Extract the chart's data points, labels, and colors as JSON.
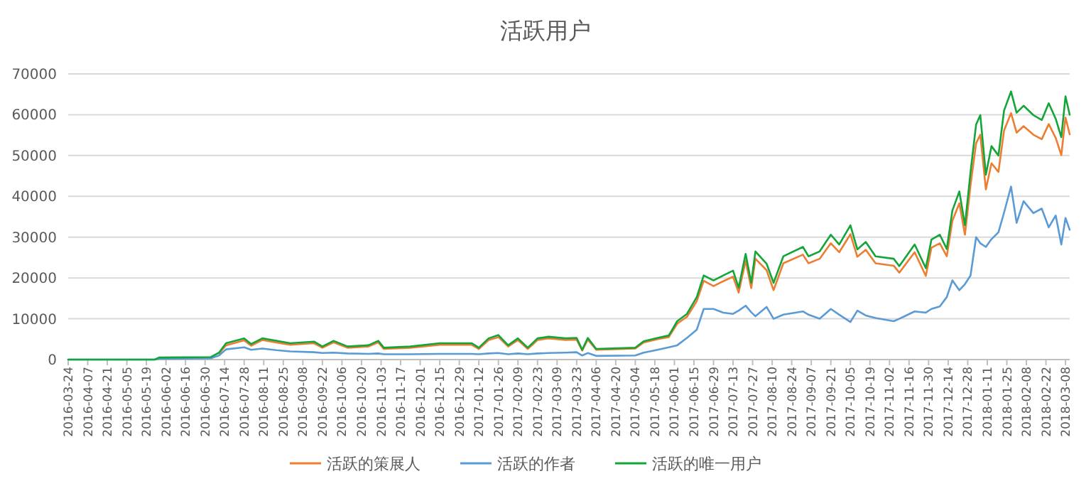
{
  "chart_data": {
    "type": "line",
    "title": "活跃用户",
    "x": [
      "2016-03-24",
      "2016-05-25",
      "2016-05-28",
      "2016-07-04",
      "2016-07-10",
      "2016-07-15",
      "2016-07-28",
      "2016-08-02",
      "2016-08-10",
      "2016-08-20",
      "2016-08-30",
      "2016-09-16",
      "2016-09-22",
      "2016-09-30",
      "2016-10-10",
      "2016-10-25",
      "2016-11-01",
      "2016-11-05",
      "2016-11-24",
      "2016-12-15",
      "2017-01-07",
      "2017-01-12",
      "2017-01-19",
      "2017-01-26",
      "2017-02-02",
      "2017-02-09",
      "2017-02-16",
      "2017-02-23",
      "2017-03-03",
      "2017-03-15",
      "2017-03-23",
      "2017-03-27",
      "2017-03-31",
      "2017-04-06",
      "2017-05-04",
      "2017-05-10",
      "2017-05-20",
      "2017-05-28",
      "2017-06-03",
      "2017-06-10",
      "2017-06-17",
      "2017-06-22",
      "2017-06-29",
      "2017-07-06",
      "2017-07-13",
      "2017-07-17",
      "2017-07-22",
      "2017-07-26",
      "2017-07-29",
      "2017-08-06",
      "2017-08-11",
      "2017-08-18",
      "2017-09-01",
      "2017-09-05",
      "2017-09-13",
      "2017-09-21",
      "2017-09-27",
      "2017-10-05",
      "2017-10-10",
      "2017-10-16",
      "2017-10-23",
      "2017-11-05",
      "2017-11-09",
      "2017-11-20",
      "2017-11-28",
      "2017-12-02",
      "2017-12-08",
      "2017-12-13",
      "2017-12-17",
      "2017-12-22",
      "2017-12-26",
      "2017-12-30",
      "2018-01-03",
      "2018-01-06",
      "2018-01-10",
      "2018-01-14",
      "2018-01-19",
      "2018-01-23",
      "2018-01-28",
      "2018-02-01",
      "2018-02-06",
      "2018-02-13",
      "2018-02-19",
      "2018-02-24",
      "2018-03-01",
      "2018-03-05",
      "2018-03-08",
      "2018-03-11"
    ],
    "series": [
      {
        "name": "活跃的策展人",
        "color": "#ed7d31",
        "values": [
          null,
          null,
          null,
          null,
          1500,
          3500,
          4700,
          3400,
          4800,
          4200,
          3600,
          4000,
          2900,
          4200,
          2900,
          3200,
          4200,
          2600,
          2900,
          3600,
          3600,
          2600,
          4800,
          5500,
          3200,
          4800,
          2600,
          4800,
          5200,
          4800,
          4900,
          2200,
          4900,
          2400,
          2700,
          4200,
          5000,
          5500,
          8800,
          10500,
          14300,
          19300,
          18000,
          19200,
          20300,
          16400,
          24200,
          17500,
          24700,
          21900,
          17000,
          23600,
          25700,
          23600,
          24700,
          28500,
          26300,
          30700,
          25200,
          26900,
          23600,
          23000,
          21300,
          26300,
          20500,
          27400,
          28500,
          25300,
          34000,
          38300,
          30600,
          42700,
          53000,
          55100,
          41700,
          48100,
          46000,
          56100,
          60400,
          55600,
          57200,
          55100,
          54000,
          57700,
          54300,
          50100,
          59300,
          55200
        ]
      },
      {
        "name": "活跃的作者",
        "color": "#5b9bd5",
        "values": [
          0,
          0,
          200,
          300,
          1000,
          2500,
          3000,
          2400,
          2700,
          2300,
          2000,
          1800,
          1600,
          1700,
          1500,
          1400,
          1500,
          1300,
          1300,
          1400,
          1400,
          1300,
          1500,
          1600,
          1300,
          1500,
          1300,
          1500,
          1600,
          1700,
          1800,
          1000,
          1600,
          900,
          1000,
          1700,
          2400,
          3000,
          3500,
          5300,
          7300,
          12400,
          12400,
          11500,
          11200,
          12000,
          13200,
          11600,
          10600,
          12900,
          10000,
          11000,
          11800,
          11000,
          10000,
          12400,
          11000,
          9200,
          12000,
          10800,
          10200,
          9400,
          10000,
          11800,
          11500,
          12400,
          13000,
          15300,
          19400,
          17000,
          18500,
          20600,
          30000,
          28500,
          27600,
          29500,
          31200,
          36000,
          42400,
          33500,
          38800,
          35900,
          37000,
          32400,
          35300,
          28200,
          34700,
          31800
        ]
      },
      {
        "name": "活跃的唯一用户",
        "color": "#13a538",
        "values": [
          0,
          0,
          500,
          600,
          1700,
          4000,
          5200,
          3800,
          5200,
          4600,
          4000,
          4400,
          3200,
          4600,
          3200,
          3500,
          4600,
          2900,
          3200,
          4000,
          4000,
          2900,
          5200,
          6000,
          3500,
          5200,
          2900,
          5200,
          5600,
          5200,
          5300,
          2400,
          5300,
          2600,
          2900,
          4500,
          5300,
          5900,
          9400,
          11200,
          15300,
          20600,
          19400,
          20600,
          21800,
          17600,
          25900,
          18800,
          26500,
          23500,
          18800,
          25300,
          27600,
          25300,
          26500,
          30600,
          28200,
          32900,
          27000,
          28800,
          25300,
          24700,
          22900,
          28200,
          22400,
          29400,
          30600,
          27100,
          36500,
          41200,
          32900,
          45900,
          57600,
          59900,
          45300,
          52300,
          50000,
          61000,
          65700,
          60500,
          62200,
          59900,
          58700,
          62800,
          59000,
          54500,
          64500,
          60000
        ]
      }
    ],
    "xlim": [
      "2016-03-24",
      "2018-03-11"
    ],
    "xticks": [
      "2016-03-24",
      "2016-04-07",
      "2016-04-21",
      "2016-05-05",
      "2016-05-19",
      "2016-06-02",
      "2016-06-16",
      "2016-06-30",
      "2016-07-14",
      "2016-07-28",
      "2016-08-11",
      "2016-08-25",
      "2016-09-08",
      "2016-09-22",
      "2016-10-06",
      "2016-10-20",
      "2016-11-03",
      "2016-11-17",
      "2016-12-01",
      "2016-12-15",
      "2016-12-29",
      "2017-01-12",
      "2017-01-26",
      "2017-02-09",
      "2017-02-23",
      "2017-03-09",
      "2017-03-23",
      "2017-04-06",
      "2017-04-20",
      "2017-05-04",
      "2017-05-18",
      "2017-06-01",
      "2017-06-15",
      "2017-06-29",
      "2017-07-13",
      "2017-07-27",
      "2017-08-10",
      "2017-08-24",
      "2017-09-07",
      "2017-09-21",
      "2017-10-05",
      "2017-10-19",
      "2017-11-02",
      "2017-11-16",
      "2017-11-30",
      "2017-12-14",
      "2017-12-28",
      "2018-01-11",
      "2018-01-25",
      "2018-02-08",
      "2018-02-22",
      "2018-03-08"
    ],
    "ylim": [
      0,
      70000
    ],
    "yticks": [
      0,
      10000,
      20000,
      30000,
      40000,
      50000,
      60000,
      70000
    ],
    "grid": "y",
    "legend": "bottom",
    "line_style": "solid",
    "marker": "none"
  }
}
